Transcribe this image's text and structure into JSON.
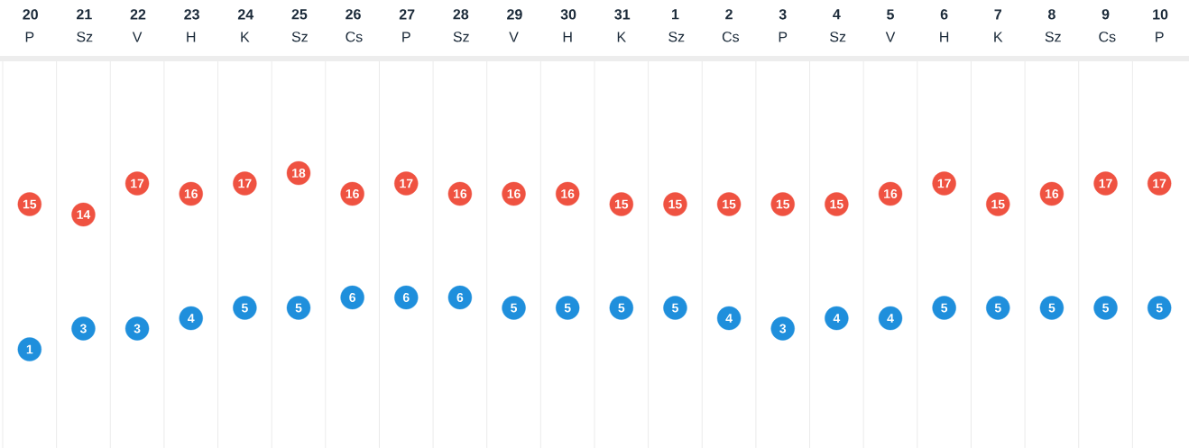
{
  "chart_data": {
    "type": "scatter",
    "categories": [
      "**20** P",
      "**21** Sz",
      "**22** V",
      "**23** H",
      "**24** K",
      "**25** Sz",
      "**26** Cs",
      "**27** P",
      "**28** Sz",
      "**29** V",
      "**30** H",
      "**31** K",
      "**1** Sz",
      "**2** Cs",
      "**3** P",
      "**4** Sz",
      "**5** V",
      "**6** H",
      "**7** K",
      "**8** Sz",
      "**9** Cs",
      "**10** P"
    ],
    "series": [
      {
        "color": "#ef5241",
        "values": [
          15,
          14,
          17,
          16,
          17,
          18,
          16,
          17,
          16,
          16,
          16,
          15,
          15,
          15,
          15,
          15,
          16,
          17,
          15,
          16,
          17,
          17
        ]
      },
      {
        "color": "#1f8fdc",
        "values": [
          1,
          3,
          3,
          4,
          5,
          5,
          6,
          6,
          6,
          5,
          5,
          5,
          5,
          4,
          3,
          4,
          4,
          5,
          5,
          5,
          5,
          5
        ]
      }
    ],
    "marker": "circle",
    "data_labels": true,
    "grid": "x",
    "tick_labels": "x"
  }
}
